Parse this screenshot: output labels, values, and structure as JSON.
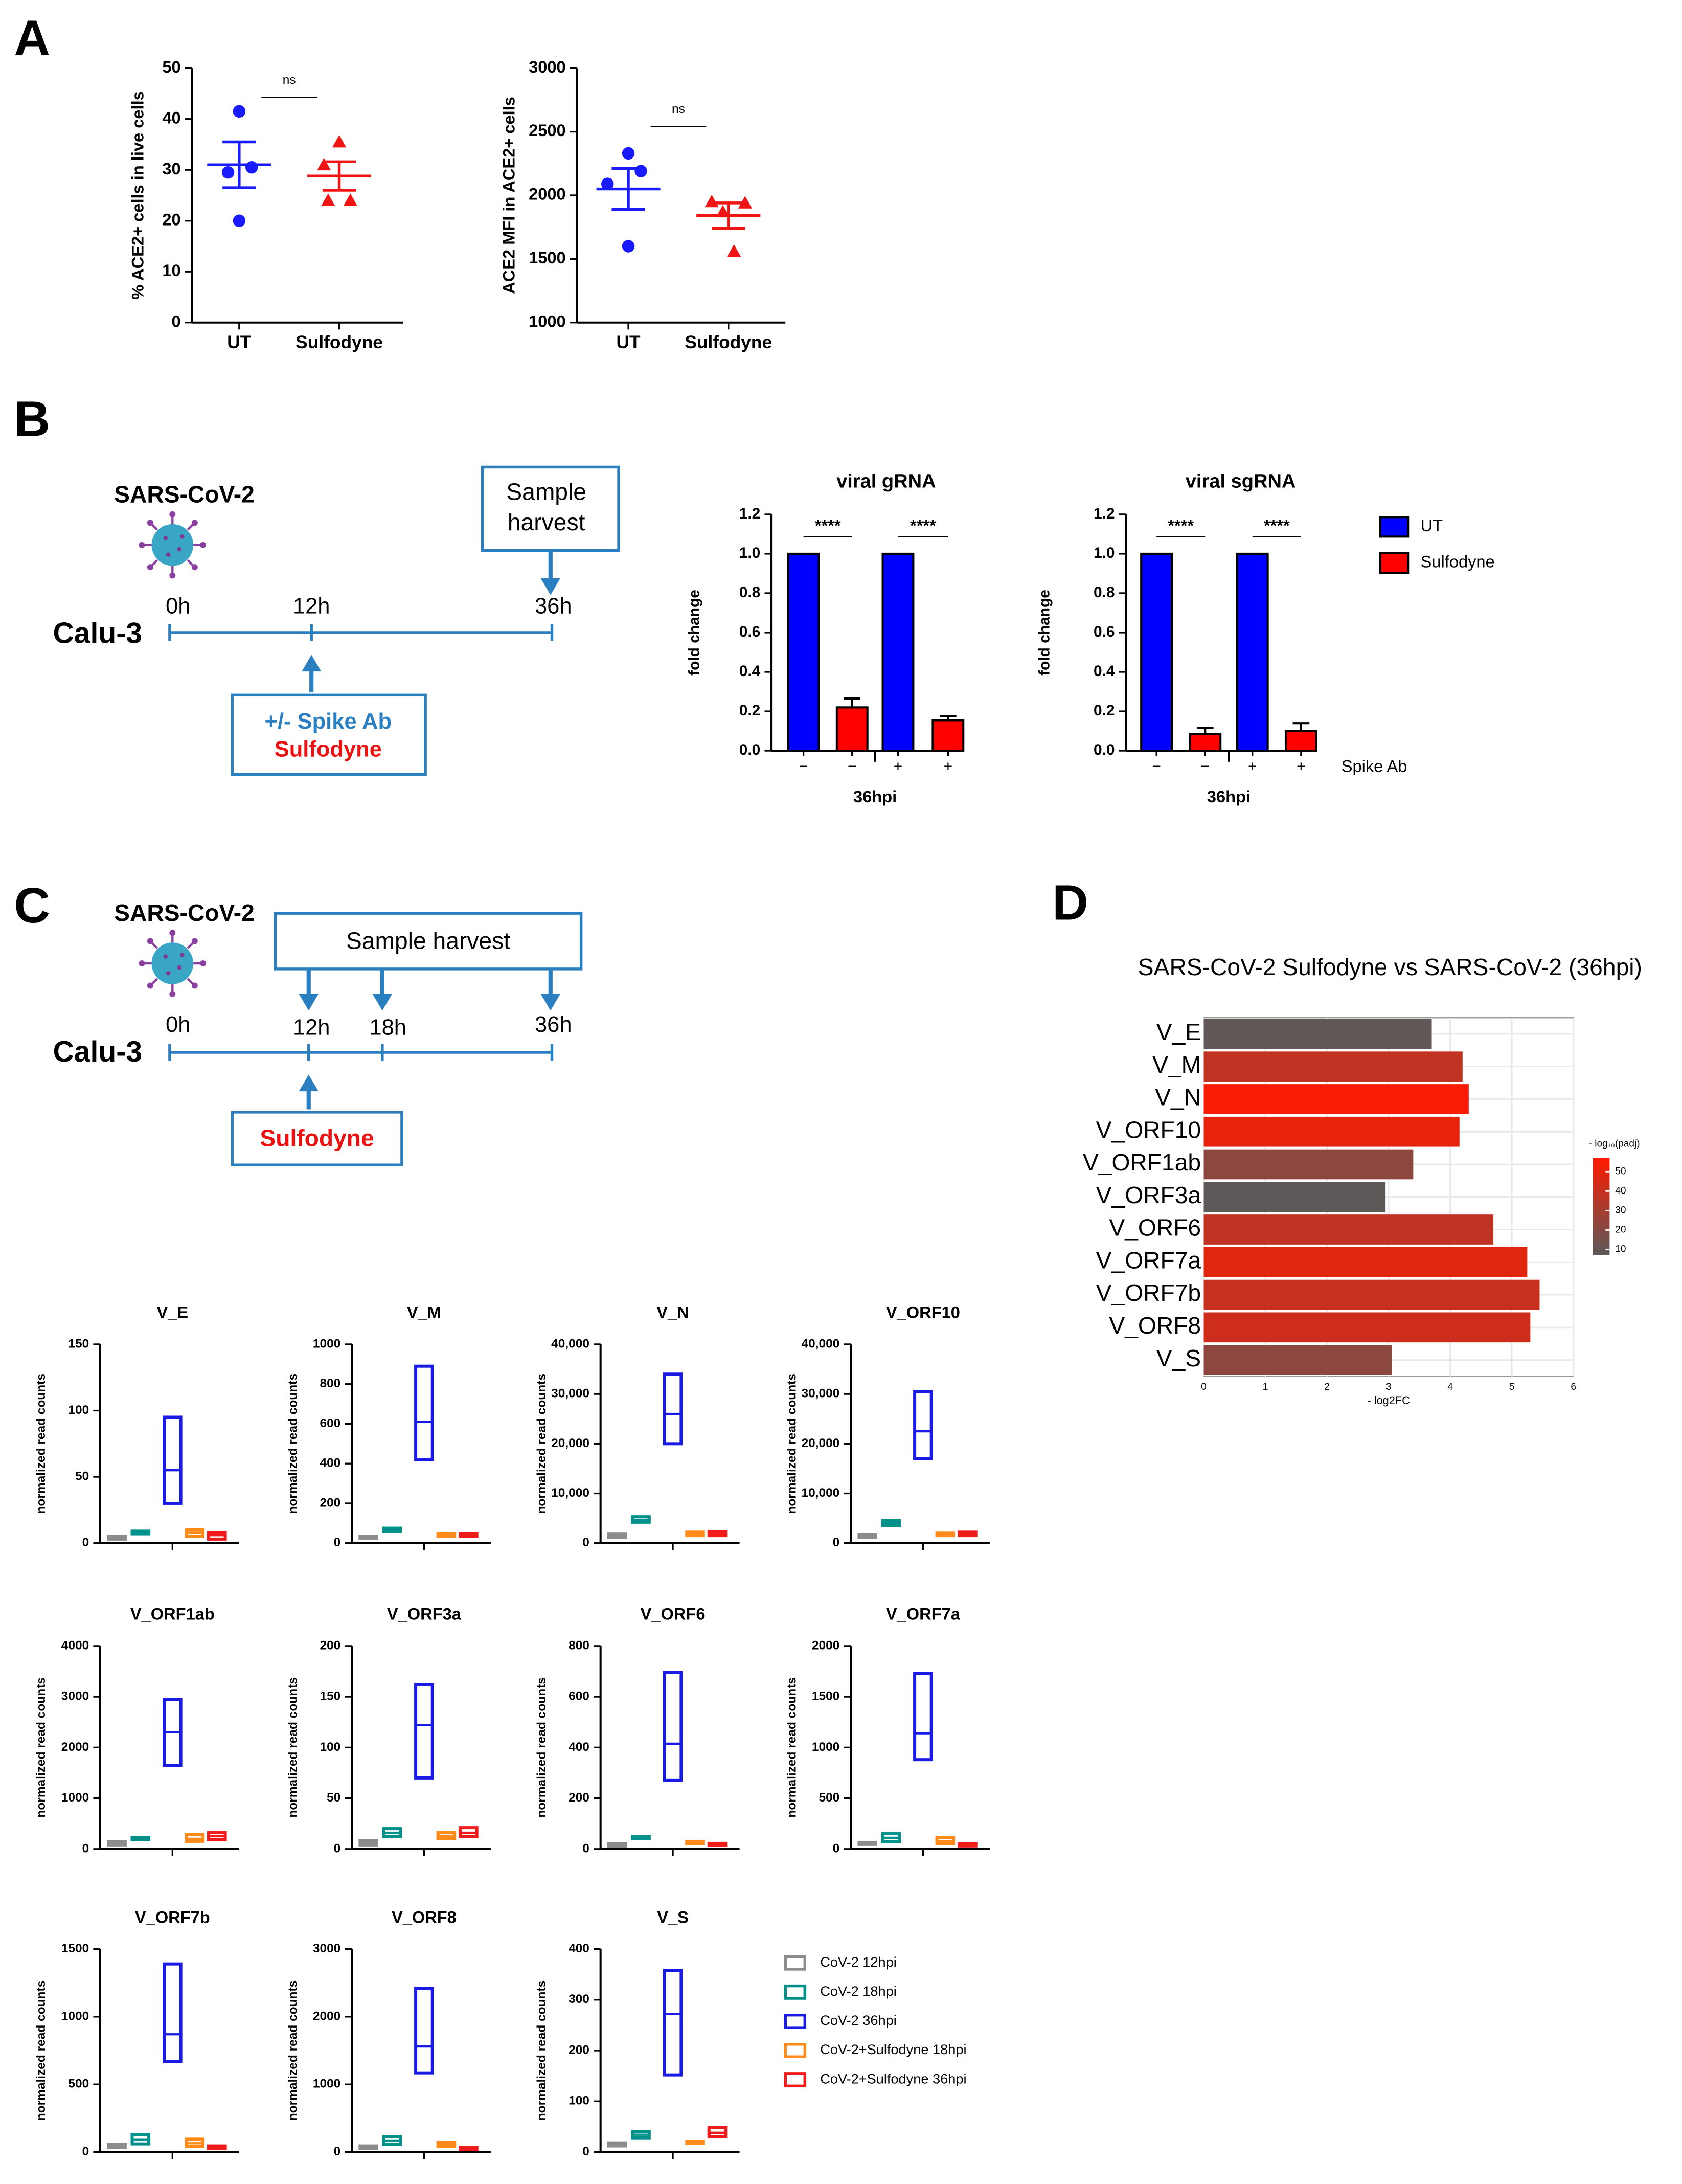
{
  "panel_labels": [
    "A",
    "B",
    "C",
    "D"
  ],
  "timeline_B": {
    "virus": "SARS-CoV-2",
    "harvest": [
      "Sample",
      "harvest"
    ],
    "cells": "Calu-3",
    "times": [
      "0h",
      "12h",
      "36h"
    ],
    "treatment": [
      "+/- Spike Ab",
      "Sulfodyne"
    ]
  },
  "timeline_C": {
    "virus": "SARS-CoV-2",
    "harvest": "Sample harvest",
    "cells": "Calu-3",
    "times": [
      "0h",
      "12h",
      "18h",
      "36h"
    ],
    "treatment": "Sulfodyne"
  },
  "chart_data": [
    {
      "type": "dot",
      "ylabel": "% ACE2+ cells in live cells",
      "categories": [
        "UT",
        "Sulfodyne"
      ],
      "points": [
        [
          41.5,
          29.5,
          30.5,
          20
        ],
        [
          35.5,
          31,
          24,
          24
        ]
      ],
      "means": [
        31,
        28.8
      ],
      "sems": [
        4.5,
        2.8
      ],
      "colors": [
        "#1a1aff",
        "#f01414"
      ],
      "markers": [
        "circle",
        "triangle"
      ],
      "ylim": [
        0,
        50
      ],
      "yticks": [
        0,
        10,
        20,
        30,
        40,
        50
      ],
      "annotation": "ns"
    },
    {
      "type": "dot",
      "ylabel": "ACE2 MFI in ACE2+ cells",
      "categories": [
        "UT",
        "Sulfodyne"
      ],
      "points": [
        [
          2330,
          2190,
          2090,
          1600
        ],
        [
          1950,
          1940,
          1870,
          1560
        ]
      ],
      "means": [
        2050,
        1840
      ],
      "sems": [
        160,
        100
      ],
      "colors": [
        "#1a1aff",
        "#f01414"
      ],
      "markers": [
        "circle",
        "triangle"
      ],
      "ylim": [
        1000,
        3000
      ],
      "yticks": [
        1000,
        1500,
        2000,
        2500,
        3000
      ],
      "annotation": "ns"
    },
    {
      "type": "bar",
      "title": "viral gRNA",
      "ylabel": "fold change",
      "xlabel": "36hpi",
      "categories": [
        "−",
        "−",
        "+",
        "+"
      ],
      "values": [
        1,
        0.22,
        1,
        0.155
      ],
      "errors": [
        0,
        0.045,
        0,
        0.02
      ],
      "colors": [
        "#0000ff",
        "#ff0000",
        "#0000ff",
        "#ff0000"
      ],
      "ylim": [
        0,
        1.2
      ],
      "yticks": [
        {
          "value": 0,
          "label": "0.0"
        },
        0.2,
        0.4,
        0.6,
        0.8,
        {
          "value": 1,
          "label": "1.0"
        },
        1.2
      ],
      "significance": [
        "****",
        "****"
      ]
    },
    {
      "type": "bar",
      "title": "viral sgRNA",
      "ylabel": "fold change",
      "xlabel": "36hpi",
      "row_label": "Spike Ab",
      "categories": [
        "−",
        "−",
        "+",
        "+"
      ],
      "values": [
        1,
        0.085,
        1,
        0.1
      ],
      "errors": [
        0,
        0.03,
        0,
        0.04
      ],
      "colors": [
        "#0000ff",
        "#ff0000",
        "#0000ff",
        "#ff0000"
      ],
      "ylim": [
        0,
        1.2
      ],
      "yticks": [
        {
          "value": 0,
          "label": "0.0"
        },
        0.2,
        0.4,
        0.6,
        0.8,
        {
          "value": 1,
          "label": "1.0"
        },
        1.2
      ],
      "significance": [
        "****",
        "****"
      ],
      "legend": [
        {
          "name": "UT",
          "color": "#0000ff"
        },
        {
          "name": "Sulfodyne",
          "color": "#ff0000"
        }
      ]
    },
    {
      "type": "range",
      "title": "V_E",
      "ylabel": "normalized read counts",
      "ylim": [
        0,
        150
      ],
      "yticks": [
        0,
        50,
        100,
        150
      ],
      "boxes": [
        {
          "color": "#8c8c8c",
          "values": [
            3,
            4,
            5
          ]
        },
        {
          "color": "#00918a",
          "values": [
            7,
            8,
            9
          ]
        },
        {
          "color": "#1a1ae6",
          "values": [
            30,
            55,
            95
          ]
        },
        {
          "color": "#ff8c1a",
          "values": [
            5,
            8,
            10
          ]
        },
        {
          "color": "#f01c1c",
          "values": [
            3,
            6,
            8
          ]
        }
      ]
    },
    {
      "type": "range",
      "title": "V_M",
      "ylabel": "normalized read counts",
      "ylim": [
        0,
        1000
      ],
      "yticks": [
        0,
        200,
        400,
        600,
        800,
        1000
      ],
      "boxes": [
        {
          "color": "#8c8c8c",
          "values": [
            25,
            30,
            35
          ]
        },
        {
          "color": "#00918a",
          "values": [
            60,
            68,
            75
          ]
        },
        {
          "color": "#1a1ae6",
          "values": [
            420,
            610,
            890
          ]
        },
        {
          "color": "#ff8c1a",
          "values": [
            35,
            42,
            48
          ]
        },
        {
          "color": "#f01c1c",
          "values": [
            35,
            42,
            50
          ]
        }
      ]
    },
    {
      "type": "range",
      "title": "V_N",
      "ylabel": "normalized read counts",
      "ylim": [
        0,
        40000
      ],
      "yticks": [
        0,
        {
          "value": 10000,
          "label": "10,000"
        },
        {
          "value": 20000,
          "label": "20,000"
        },
        {
          "value": 30000,
          "label": "30,000"
        },
        {
          "value": 40000,
          "label": "40,000"
        }
      ],
      "boxes": [
        {
          "color": "#8c8c8c",
          "values": [
            1200,
            1500,
            1900
          ]
        },
        {
          "color": "#00918a",
          "values": [
            4200,
            4700,
            5300
          ]
        },
        {
          "color": "#1a1ae6",
          "values": [
            20000,
            26000,
            34000
          ]
        },
        {
          "color": "#ff8c1a",
          "values": [
            1500,
            1800,
            2200
          ]
        },
        {
          "color": "#f01c1c",
          "values": [
            1500,
            1800,
            2300
          ]
        }
      ]
    },
    {
      "type": "range",
      "title": "V_ORF10",
      "ylabel": "normalized read counts",
      "ylim": [
        0,
        40000
      ],
      "yticks": [
        0,
        {
          "value": 10000,
          "label": "10,000"
        },
        {
          "value": 20000,
          "label": "20,000"
        },
        {
          "value": 30000,
          "label": "30,000"
        },
        {
          "value": 40000,
          "label": "40,000"
        }
      ],
      "boxes": [
        {
          "color": "#8c8c8c",
          "values": [
            1200,
            1500,
            1800
          ]
        },
        {
          "color": "#00918a",
          "values": [
            3500,
            4000,
            4500
          ]
        },
        {
          "color": "#1a1ae6",
          "values": [
            17000,
            22500,
            30500
          ]
        },
        {
          "color": "#ff8c1a",
          "values": [
            1500,
            1800,
            2100
          ]
        },
        {
          "color": "#f01c1c",
          "values": [
            1500,
            1800,
            2200
          ]
        }
      ]
    },
    {
      "type": "range",
      "title": "V_ORF1ab",
      "ylabel": "normalized read counts",
      "ylim": [
        0,
        4000
      ],
      "yticks": [
        0,
        1000,
        2000,
        3000,
        4000
      ],
      "boxes": [
        {
          "color": "#8c8c8c",
          "values": [
            80,
            110,
            140
          ]
        },
        {
          "color": "#00918a",
          "values": [
            180,
            200,
            220
          ]
        },
        {
          "color": "#1a1ae6",
          "values": [
            1650,
            2300,
            2950
          ]
        },
        {
          "color": "#ff8c1a",
          "values": [
            150,
            200,
            280
          ]
        },
        {
          "color": "#f01c1c",
          "values": [
            180,
            250,
            320
          ]
        }
      ]
    },
    {
      "type": "range",
      "title": "V_ORF3a",
      "ylabel": "normalized read counts",
      "ylim": [
        0,
        200
      ],
      "yticks": [
        0,
        50,
        100,
        150,
        200
      ],
      "boxes": [
        {
          "color": "#8c8c8c",
          "values": [
            4,
            6,
            8
          ]
        },
        {
          "color": "#00918a",
          "values": [
            12,
            16,
            20
          ]
        },
        {
          "color": "#1a1ae6",
          "values": [
            70,
            122,
            162
          ]
        },
        {
          "color": "#ff8c1a",
          "values": [
            10,
            13,
            16
          ]
        },
        {
          "color": "#f01c1c",
          "values": [
            12,
            16,
            21
          ]
        }
      ]
    },
    {
      "type": "range",
      "title": "V_ORF6",
      "ylabel": "normalized read counts",
      "ylim": [
        0,
        800
      ],
      "yticks": [
        0,
        200,
        400,
        600,
        800
      ],
      "boxes": [
        {
          "color": "#8c8c8c",
          "values": [
            10,
            15,
            20
          ]
        },
        {
          "color": "#00918a",
          "values": [
            40,
            45,
            50
          ]
        },
        {
          "color": "#1a1ae6",
          "values": [
            270,
            415,
            695
          ]
        },
        {
          "color": "#ff8c1a",
          "values": [
            20,
            25,
            30
          ]
        },
        {
          "color": "#f01c1c",
          "values": [
            15,
            18,
            22
          ]
        }
      ]
    },
    {
      "type": "range",
      "title": "V_ORF7a",
      "ylabel": "normalized read counts",
      "ylim": [
        0,
        2000
      ],
      "yticks": [
        0,
        500,
        1000,
        1500,
        2000
      ],
      "boxes": [
        {
          "color": "#8c8c8c",
          "values": [
            45,
            55,
            65
          ]
        },
        {
          "color": "#00918a",
          "values": [
            70,
            110,
            150
          ]
        },
        {
          "color": "#1a1ae6",
          "values": [
            880,
            1140,
            1730
          ]
        },
        {
          "color": "#ff8c1a",
          "values": [
            50,
            75,
            110
          ]
        },
        {
          "color": "#f01c1c",
          "values": [
            30,
            40,
            50
          ]
        }
      ]
    },
    {
      "type": "range",
      "title": "V_ORF7b",
      "ylabel": "normalized read counts",
      "ylim": [
        0,
        1500
      ],
      "yticks": [
        0,
        500,
        1000,
        1500
      ],
      "boxes": [
        {
          "color": "#8c8c8c",
          "values": [
            35,
            45,
            55
          ]
        },
        {
          "color": "#00918a",
          "values": [
            60,
            90,
            130
          ]
        },
        {
          "color": "#1a1ae6",
          "values": [
            670,
            870,
            1390
          ]
        },
        {
          "color": "#ff8c1a",
          "values": [
            40,
            65,
            95
          ]
        },
        {
          "color": "#f01c1c",
          "values": [
            25,
            35,
            45
          ]
        }
      ]
    },
    {
      "type": "range",
      "title": "V_ORF8",
      "ylabel": "normalized read counts",
      "ylim": [
        0,
        3000
      ],
      "yticks": [
        0,
        1000,
        2000,
        3000
      ],
      "boxes": [
        {
          "color": "#8c8c8c",
          "values": [
            50,
            70,
            90
          ]
        },
        {
          "color": "#00918a",
          "values": [
            110,
            170,
            230
          ]
        },
        {
          "color": "#1a1ae6",
          "values": [
            1170,
            1560,
            2420
          ]
        },
        {
          "color": "#ff8c1a",
          "values": [
            80,
            110,
            140
          ]
        },
        {
          "color": "#f01c1c",
          "values": [
            40,
            55,
            70
          ]
        }
      ]
    },
    {
      "type": "range",
      "title": "V_S",
      "ylabel": "normalized read counts",
      "ylim": [
        0,
        400
      ],
      "yticks": [
        0,
        100,
        200,
        300,
        400
      ],
      "boxes": [
        {
          "color": "#8c8c8c",
          "values": [
            12,
            15,
            18
          ]
        },
        {
          "color": "#00918a",
          "values": [
            28,
            34,
            40
          ]
        },
        {
          "color": "#1a1ae6",
          "values": [
            152,
            272,
            358
          ]
        },
        {
          "color": "#ff8c1a",
          "values": [
            17,
            19,
            21
          ]
        },
        {
          "color": "#f01c1c",
          "values": [
            30,
            38,
            48
          ]
        }
      ],
      "legend": [
        {
          "name": "CoV-2 12hpi",
          "color": "#8c8c8c"
        },
        {
          "name": "CoV-2 18hpi",
          "color": "#00918a"
        },
        {
          "name": "CoV-2 36hpi",
          "color": "#1a1ae6"
        },
        {
          "name": "CoV-2+Sulfodyne 18hpi",
          "color": "#ff8c1a"
        },
        {
          "name": "CoV-2+Sulfodyne 36hpi",
          "color": "#f01c1c"
        }
      ]
    },
    {
      "type": "hbar",
      "title": "SARS-CoV-2 Sulfodyne vs SARS-CoV-2 (36hpi)",
      "categories": [
        "V_E",
        "V_M",
        "V_N",
        "V_ORF10",
        "V_ORF1ab",
        "V_ORF3a",
        "V_ORF6",
        "V_ORF7a",
        "V_ORF7b",
        "V_ORF8",
        "V_S"
      ],
      "values": [
        3.7,
        4.2,
        4.3,
        4.15,
        3.4,
        2.95,
        4.7,
        5.25,
        5.45,
        5.3,
        3.05
      ],
      "color_values": [
        9,
        38,
        55,
        50,
        22,
        8,
        38,
        48,
        40,
        42,
        22
      ],
      "color_label": "- log₁₀(padj)",
      "color_lim": [
        7,
        57
      ],
      "color_ticks": [
        10,
        20,
        30,
        40,
        50
      ],
      "color_range": [
        "#5a5a5a",
        "#ff1a00"
      ],
      "xlabel": "- log2FC",
      "xlim": [
        0,
        6
      ],
      "xticks": [
        0,
        1,
        2,
        3,
        4,
        5,
        6
      ],
      "grid": true
    }
  ]
}
